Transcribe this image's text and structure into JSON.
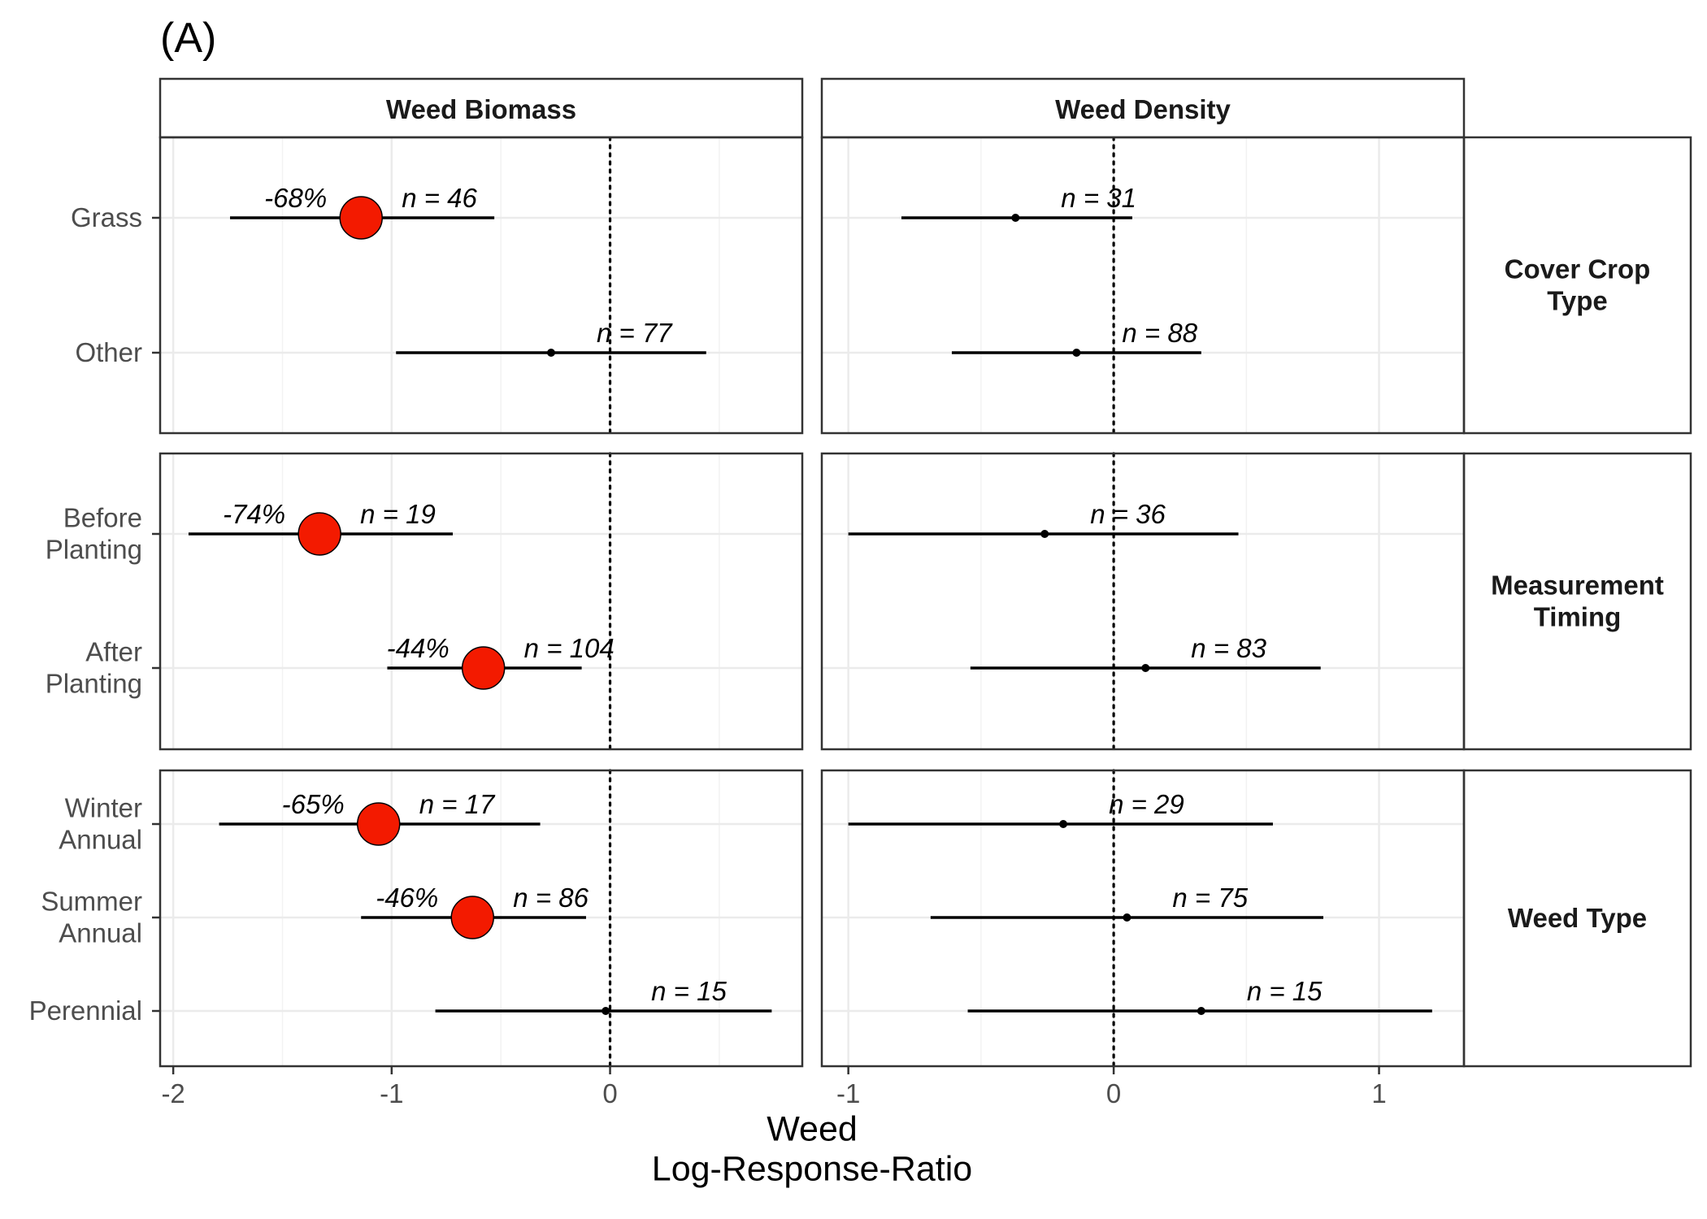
{
  "tag": "(A)",
  "chart_data": {
    "type": "scatter",
    "subtype": "forest-plot",
    "xlabel": [
      "Weed",
      "Log-Response-Ratio"
    ],
    "reference_line": 0,
    "point_color_significant": "#f31a00",
    "columns": [
      {
        "name": "Weed Biomass",
        "xlim": [
          -2.06,
          0.88
        ],
        "ticks": [
          -2,
          -1,
          0
        ],
        "tick_labels": [
          "-2",
          "-1",
          "0"
        ]
      },
      {
        "name": "Weed Density",
        "xlim": [
          -1.1,
          1.32
        ],
        "ticks": [
          -1,
          0,
          1
        ],
        "tick_labels": [
          "-1",
          "0",
          "1"
        ]
      }
    ],
    "rows": [
      {
        "name": [
          "Cover Crop",
          "Type"
        ],
        "categories": [
          [
            "Grass"
          ],
          [
            "Other"
          ]
        ]
      },
      {
        "name": [
          "Measurement",
          "Timing"
        ],
        "categories": [
          [
            "Before",
            "Planting"
          ],
          [
            "After",
            "Planting"
          ]
        ]
      },
      {
        "name": [
          "Weed Type"
        ],
        "categories": [
          [
            "Winter",
            "Annual"
          ],
          [
            "Summer",
            "Annual"
          ],
          [
            "Perennial"
          ]
        ]
      }
    ],
    "series": [
      {
        "column": 0,
        "row": 0,
        "category": 0,
        "estimate": -1.14,
        "lower": -1.74,
        "upper": -0.53,
        "n_label": "n = 46",
        "pct_label": "-68%",
        "significant": true
      },
      {
        "column": 0,
        "row": 0,
        "category": 1,
        "estimate": -0.27,
        "lower": -0.98,
        "upper": 0.44,
        "n_label": "n = 77",
        "significant": false
      },
      {
        "column": 0,
        "row": 1,
        "category": 0,
        "estimate": -1.33,
        "lower": -1.93,
        "upper": -0.72,
        "n_label": "n = 19",
        "pct_label": "-74%",
        "significant": true
      },
      {
        "column": 0,
        "row": 1,
        "category": 1,
        "estimate": -0.58,
        "lower": -1.02,
        "upper": -0.13,
        "n_label": "n = 104",
        "pct_label": "-44%",
        "significant": true
      },
      {
        "column": 0,
        "row": 2,
        "category": 0,
        "estimate": -1.06,
        "lower": -1.79,
        "upper": -0.32,
        "n_label": "n = 17",
        "pct_label": "-65%",
        "significant": true
      },
      {
        "column": 0,
        "row": 2,
        "category": 1,
        "estimate": -0.63,
        "lower": -1.14,
        "upper": -0.11,
        "n_label": "n = 86",
        "pct_label": "-46%",
        "significant": true
      },
      {
        "column": 0,
        "row": 2,
        "category": 2,
        "estimate": -0.02,
        "lower": -0.8,
        "upper": 0.74,
        "n_label": "n = 15",
        "significant": false
      },
      {
        "column": 1,
        "row": 0,
        "category": 0,
        "estimate": -0.37,
        "lower": -0.8,
        "upper": 0.07,
        "n_label": "n = 31",
        "significant": false
      },
      {
        "column": 1,
        "row": 0,
        "category": 1,
        "estimate": -0.14,
        "lower": -0.61,
        "upper": 0.33,
        "n_label": "n = 88",
        "significant": false
      },
      {
        "column": 1,
        "row": 1,
        "category": 0,
        "estimate": -0.26,
        "lower": -1.0,
        "upper": 0.47,
        "n_label": "n = 36",
        "significant": false
      },
      {
        "column": 1,
        "row": 1,
        "category": 1,
        "estimate": 0.12,
        "lower": -0.54,
        "upper": 0.78,
        "n_label": "n = 83",
        "significant": false
      },
      {
        "column": 1,
        "row": 2,
        "category": 0,
        "estimate": -0.19,
        "lower": -1.0,
        "upper": 0.6,
        "n_label": "n = 29",
        "significant": false
      },
      {
        "column": 1,
        "row": 2,
        "category": 1,
        "estimate": 0.05,
        "lower": -0.69,
        "upper": 0.79,
        "n_label": "n = 75",
        "significant": false
      },
      {
        "column": 1,
        "row": 2,
        "category": 2,
        "estimate": 0.33,
        "lower": -0.55,
        "upper": 1.2,
        "n_label": "n = 15",
        "significant": false
      }
    ]
  }
}
